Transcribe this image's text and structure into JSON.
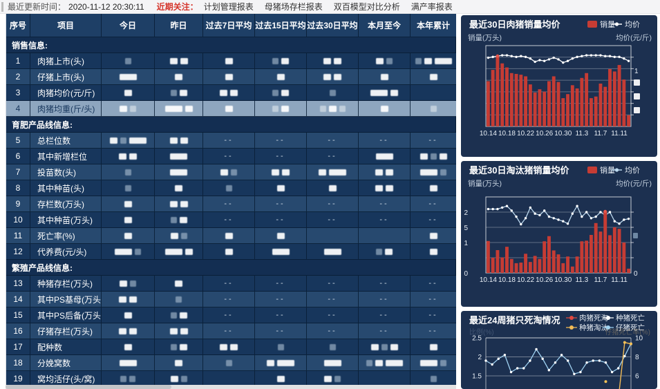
{
  "topbar": {
    "updated_label": "最近更新时间：",
    "updated_time": "2020-11-12 20:30:11",
    "focus_label": "近期关注：",
    "links": [
      "计划管理报表",
      "母猪场存栏报表",
      "双百模型对比分析",
      "满产率报表"
    ]
  },
  "table": {
    "columns": [
      "序号",
      "项目",
      "今日",
      "昨日",
      "过去7日平均",
      "过去15日平均",
      "过去30日平均",
      "本月至今",
      "本年累计"
    ],
    "redaction_note": "all numeric cells are blurred/redacted in source; '--' cells show literal dashes",
    "highlight_row_no": "4",
    "sections": [
      {
        "title": "销售信息:",
        "rows": [
          {
            "no": "1",
            "name": "肉猪上市(头)",
            "cells": [
              "g",
              "bb",
              "b",
              "gb",
              "bb",
              "bg",
              "gbB"
            ]
          },
          {
            "no": "2",
            "name": "仔猪上市(头)",
            "cells": [
              "B",
              "b",
              "b",
              "b",
              "bb",
              "b",
              "b"
            ]
          },
          {
            "no": "3",
            "name": "肉猪均价(元/斤)",
            "cells": [
              "b",
              "gb",
              "bb",
              "gb",
              "g",
              "Bb",
              ""
            ]
          },
          {
            "no": "4",
            "name": "肉猪均重(斤/头)",
            "cells": [
              "bg",
              "Bb",
              "b",
              "gb",
              "gbg",
              "b",
              "g"
            ]
          }
        ]
      },
      {
        "title": "育肥产品线信息:",
        "rows": [
          {
            "no": "5",
            "name": "总栏位数",
            "cells": [
              "bgB",
              "bb",
              "--",
              "--",
              "--",
              "--",
              "--"
            ]
          },
          {
            "no": "6",
            "name": "其中新增栏位",
            "cells": [
              "bb",
              "B",
              "--",
              "--",
              "--",
              "B",
              "bgb"
            ]
          },
          {
            "no": "7",
            "name": "投苗数(头)",
            "cells": [
              "g",
              "B",
              "bg",
              "bb",
              "bB",
              "bb",
              "Bg"
            ]
          },
          {
            "no": "8",
            "name": "其中种苗(头)",
            "cells": [
              "g",
              "b",
              "g",
              "b",
              "b",
              "bb",
              "b"
            ]
          },
          {
            "no": "9",
            "name": "存栏数(万头)",
            "cells": [
              "b",
              "bb",
              "--",
              "--",
              "--",
              "--",
              "--"
            ]
          },
          {
            "no": "10",
            "name": "其中种苗(万头)",
            "cells": [
              "b",
              "gb",
              "--",
              "--",
              "--",
              "--",
              "--"
            ]
          },
          {
            "no": "11",
            "name": "死亡率(%)",
            "cells": [
              "b",
              "bg",
              "b",
              "b",
              "",
              "",
              "b"
            ]
          },
          {
            "no": "12",
            "name": "代养费(元/头)",
            "cells": [
              "Bg",
              "Bb",
              "b",
              "B",
              "B",
              "gb",
              "b"
            ]
          }
        ]
      },
      {
        "title": "繁殖产品线信息:",
        "rows": [
          {
            "no": "13",
            "name": "种猪存栏(万头)",
            "cells": [
              "bg",
              "b",
              "--",
              "--",
              "--",
              "--",
              "--"
            ]
          },
          {
            "no": "14",
            "name": "其中PS基母(万头)",
            "cells": [
              "bb",
              "g",
              "--",
              "--",
              "--",
              "--",
              "--"
            ]
          },
          {
            "no": "15",
            "name": "其中PS后备(万头)",
            "cells": [
              "b",
              "gb",
              "--",
              "--",
              "--",
              "--",
              "--"
            ]
          },
          {
            "no": "16",
            "name": "仔猪存栏(万头)",
            "cells": [
              "bb",
              "bb",
              "--",
              "--",
              "--",
              "--",
              "--"
            ]
          },
          {
            "no": "17",
            "name": "配种数",
            "cells": [
              "b",
              "gb",
              "bb",
              "g",
              "g",
              "bgb",
              "b"
            ]
          },
          {
            "no": "18",
            "name": "分娩窝数",
            "cells": [
              "B",
              "b",
              "g",
              "bB",
              "B",
              "gbB",
              "Bg"
            ]
          },
          {
            "no": "19",
            "name": "窝均活仔(头/窝)",
            "cells": [
              "gg",
              "bg",
              "",
              "b",
              "bg",
              "",
              "g"
            ]
          }
        ]
      }
    ]
  },
  "chart_data": [
    {
      "type": "bar",
      "title": "最近30日肉猪销量均价",
      "legend": [
        {
          "label": "销量",
          "shape": "bar",
          "color": "#c63c34"
        },
        {
          "label": "均价",
          "shape": "line",
          "color": "#ffffff"
        }
      ],
      "y_left_label": "销量(万头)",
      "y_right_label": "均价(元/斤)",
      "x_tick_labels": [
        "10.14",
        "10.18",
        "10.22",
        "10.26",
        "10.30",
        "11.3",
        "11.7",
        "11.11"
      ],
      "axis_values_redacted": true,
      "right_axis_visible_tick": "1",
      "bars_relative": [
        0.56,
        0.7,
        0.86,
        0.78,
        0.73,
        0.66,
        0.65,
        0.64,
        0.62,
        0.52,
        0.42,
        0.46,
        0.43,
        0.56,
        0.62,
        0.55,
        0.35,
        0.4,
        0.51,
        0.47,
        0.6,
        0.66,
        0.35,
        0.37,
        0.53,
        0.49,
        0.71,
        0.68,
        0.76,
        0.58,
        0.14
      ],
      "line_relative": [
        0.85,
        0.86,
        0.87,
        0.88,
        0.88,
        0.87,
        0.86,
        0.87,
        0.86,
        0.84,
        0.8,
        0.82,
        0.81,
        0.83,
        0.85,
        0.83,
        0.79,
        0.81,
        0.84,
        0.86,
        0.87,
        0.88,
        0.88,
        0.88,
        0.88,
        0.87,
        0.87,
        0.86,
        0.86,
        0.84,
        0.81
      ],
      "highlight_point_index": 2
    },
    {
      "type": "bar",
      "title": "最近30日淘汰猪销量均价",
      "legend": [
        {
          "label": "销量",
          "shape": "bar",
          "color": "#c63c34"
        },
        {
          "label": "均价",
          "shape": "line",
          "color": "#bcd9ef"
        }
      ],
      "y_left_label": "销量(万头)",
      "y_right_label": "均价(元/斤)",
      "x_tick_labels": [
        "10.14",
        "10.18",
        "10.22",
        "10.26",
        "10.30",
        "11.3",
        "11.7",
        "11.11"
      ],
      "y_left_ticks_visible": [
        "2",
        "5",
        "1",
        "",
        "0"
      ],
      "y_right_ticks_visible": [
        "0"
      ],
      "ylim": [
        0,
        2.5
      ],
      "bars": [
        1.05,
        0.5,
        0.75,
        0.51,
        0.86,
        0.46,
        0.32,
        0.34,
        0.63,
        0.36,
        0.56,
        0.46,
        1.04,
        1.21,
        0.74,
        0.61,
        0.32,
        0.54,
        0.21,
        0.54,
        1.04,
        1.06,
        1.25,
        1.64,
        1.36,
        2.02,
        1.24,
        1.5,
        1.45,
        1.0,
        0.14
      ],
      "line": [
        2.1,
        2.1,
        2.1,
        2.15,
        2.2,
        2.05,
        1.85,
        1.6,
        1.8,
        2.15,
        1.95,
        1.9,
        2.05,
        1.85,
        1.8,
        1.75,
        1.7,
        1.62,
        1.95,
        2.2,
        1.85,
        2.0,
        1.8,
        1.85,
        2.0,
        1.9,
        2.0,
        1.7,
        1.62,
        1.75,
        1.78
      ],
      "highlight_point_index": 25
    },
    {
      "type": "line",
      "title": "最近24周猪只死淘情况",
      "legend": [
        {
          "label": "肉猪死淘",
          "color": "#e0483f"
        },
        {
          "label": "种猪死亡",
          "color": "#ffffff"
        },
        {
          "label": "种猪淘汰",
          "color": "#f3bb55"
        },
        {
          "label": "仔猪死亡",
          "color": "#9fd2f2"
        }
      ],
      "y_left_label_dim": "比例(%)",
      "y_right_label_dim": "仔猪死亡率(%)",
      "y_left_ticks_visible": [
        "2.5",
        "2",
        "1.5"
      ],
      "y_right_ticks_visible": [
        "10",
        "8",
        "6"
      ],
      "note": "chart clipped at bottom of screenshot; only 仔猪死亡 line and tail of 种猪淘汰 line visible",
      "piglet_death_line": [
        1.9,
        1.8,
        1.95,
        2.05,
        1.6,
        1.7,
        1.7,
        1.9,
        2.2,
        1.95,
        1.65,
        1.85,
        2.05,
        1.9,
        1.55,
        1.6,
        1.85,
        1.9,
        1.9,
        1.85,
        1.6,
        1.7,
        2.02,
        2.35
      ],
      "sow_cull_line": [
        null,
        null,
        null,
        null,
        null,
        null,
        null,
        null,
        null,
        null,
        null,
        null,
        null,
        null,
        null,
        null,
        null,
        null,
        null,
        1.35,
        null,
        0.9,
        2.38,
        2.34
      ]
    }
  ]
}
